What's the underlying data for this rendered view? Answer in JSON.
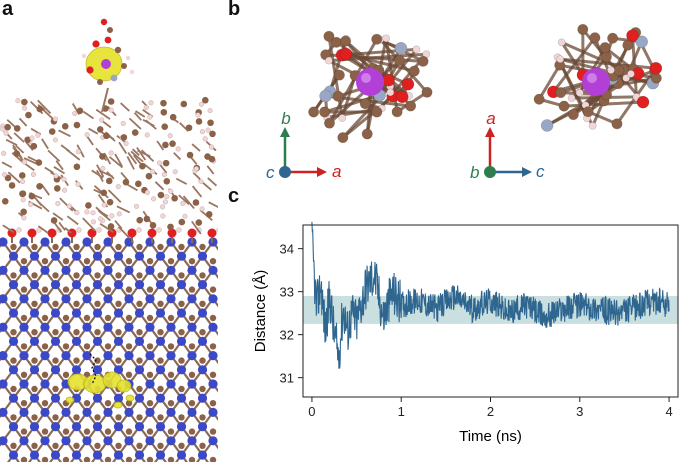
{
  "panels": {
    "a": {
      "letter": "a"
    },
    "b": {
      "letter": "b",
      "view1": {
        "vertical_axis": "b",
        "horizontal_axis": "a",
        "out_of_plane_axis": "c"
      },
      "view2": {
        "vertical_axis": "a",
        "horizontal_axis": "c",
        "out_of_plane_axis": "b"
      }
    },
    "c": {
      "letter": "c"
    }
  },
  "colors": {
    "carbon": "#8b6248",
    "oxygen": "#e02020",
    "nitrogen": "#9aa7c4",
    "hydrogen": "#f0d6d6",
    "metal": "#b23fd6",
    "boron_nitride_blue": "#3b48c8",
    "density_yellow": "#e6e22e",
    "axis_red": "#cc2222",
    "axis_green": "#2e7d4f",
    "axis_blue": "#2f6690",
    "series_line": "#2f6690",
    "band": "#c9dfe0"
  },
  "chart_data": {
    "type": "line",
    "xlabel": "Time (ns)",
    "ylabel": "Distance (Å)",
    "xlim": [
      -0.1,
      4.1
    ],
    "ylim": [
      30.55,
      34.55
    ],
    "xticks": [
      "0",
      "1",
      "2",
      "3",
      "4"
    ],
    "yticks": [
      "31",
      "32",
      "33",
      "34"
    ],
    "band": [
      32.25,
      32.9
    ],
    "grid": false,
    "series": [
      {
        "x": [
          0,
          0.05,
          0.1,
          0.15,
          0.2,
          0.25,
          0.3,
          0.35,
          0.4,
          0.45,
          0.5,
          0.6,
          0.7,
          0.8,
          0.9,
          1.0,
          1.2,
          1.4,
          1.6,
          1.8,
          2.0,
          2.2,
          2.4,
          2.6,
          2.8,
          3.0,
          3.2,
          3.4,
          3.6,
          3.8,
          4.0
        ],
        "y": [
          34.2,
          32.6,
          33.2,
          32.1,
          32.9,
          32.0,
          31.5,
          32.6,
          32.1,
          32.5,
          32.3,
          33.1,
          33.4,
          32.4,
          33.0,
          32.7,
          32.8,
          32.6,
          32.9,
          32.6,
          32.8,
          32.5,
          32.7,
          32.4,
          32.6,
          32.7,
          32.6,
          32.5,
          32.6,
          32.8,
          32.7
        ]
      }
    ]
  }
}
